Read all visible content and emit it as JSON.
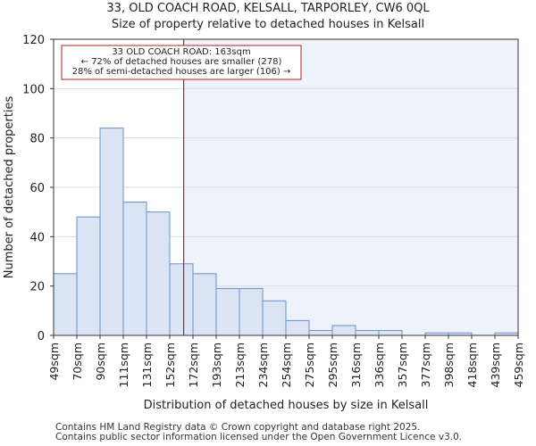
{
  "chart_data": {
    "type": "bar",
    "title": "33, OLD COACH ROAD, KELSALL, TARPORLEY, CW6 0QL",
    "subtitle": "Size of property relative to detached houses in Kelsall",
    "xlabel": "Distribution of detached houses by size in Kelsall",
    "ylabel": "Number of detached properties",
    "ylim": [
      0,
      120
    ],
    "yticks": [
      0,
      20,
      40,
      60,
      80,
      100,
      120
    ],
    "bin_labels": [
      "49sqm",
      "70sqm",
      "90sqm",
      "111sqm",
      "131sqm",
      "152sqm",
      "172sqm",
      "193sqm",
      "213sqm",
      "234sqm",
      "254sqm",
      "275sqm",
      "295sqm",
      "316sqm",
      "336sqm",
      "357sqm",
      "377sqm",
      "398sqm",
      "418sqm",
      "439sqm",
      "459sqm"
    ],
    "values": [
      25,
      48,
      84,
      54,
      50,
      29,
      25,
      19,
      19,
      14,
      6,
      2,
      4,
      2,
      2,
      0,
      1,
      1,
      0,
      1
    ],
    "marker": {
      "position_bin": 5.6,
      "label_lines": [
        "33 OLD COACH ROAD: 163sqm",
        "← 72% of detached houses are smaller (278)",
        "28% of semi-detached houses are larger (106) →"
      ]
    },
    "colors": {
      "bar_fill": "#dae4f4",
      "bar_stroke": "#6a8fc7",
      "marker": "#b22222",
      "highlight_bg": "#eef2fa"
    }
  },
  "footer": {
    "line1": "Contains HM Land Registry data © Crown copyright and database right 2025.",
    "line2": "Contains public sector information licensed under the Open Government Licence v3.0."
  }
}
